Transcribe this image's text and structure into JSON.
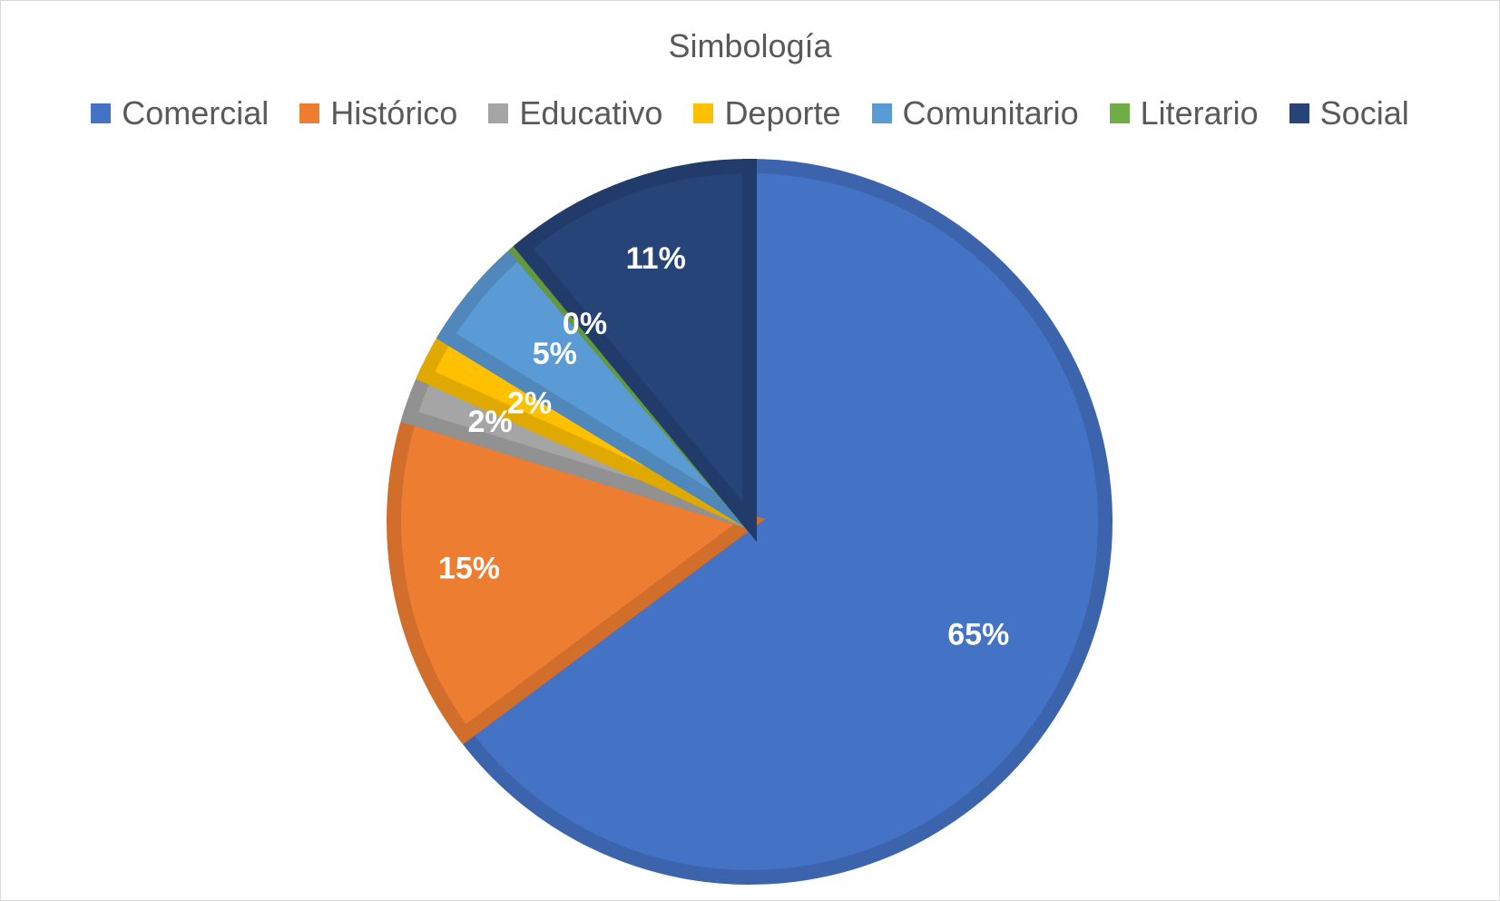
{
  "chart_data": {
    "type": "pie",
    "title": "Simbología",
    "categories": [
      "Comercial",
      "Histórico",
      "Educativo",
      "Deporte",
      "Comunitario",
      "Literario",
      "Social"
    ],
    "values": [
      65,
      15,
      2,
      2,
      5,
      0.3,
      11
    ],
    "data_labels": [
      "65%",
      "15%",
      "2%",
      "2%",
      "5%",
      "0%",
      "11%"
    ],
    "colors": [
      "#4472C4",
      "#ED7D31",
      "#A5A5A5",
      "#FFC000",
      "#5B9BD5",
      "#70AD47",
      "#264478"
    ],
    "legend_position": "top",
    "start_angle_deg": 0,
    "direction": "clockwise"
  }
}
